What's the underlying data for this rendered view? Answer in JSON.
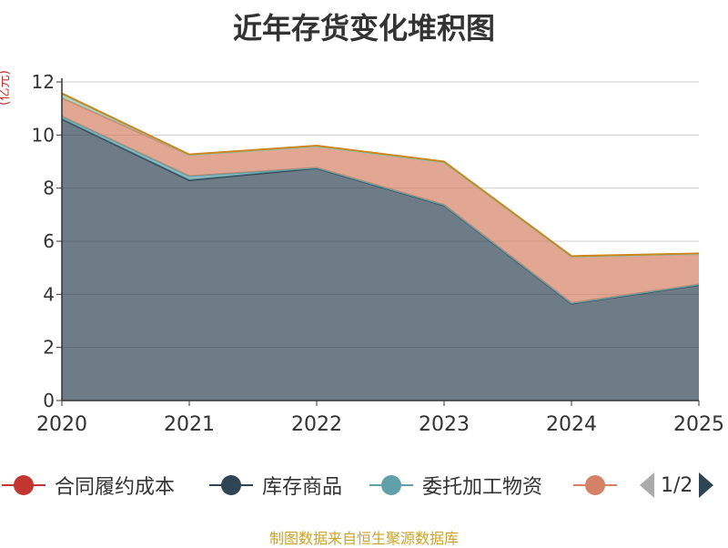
{
  "chart_data": {
    "type": "area",
    "title": "近年存货变化堆积图",
    "ylabel": "(亿元)",
    "categories": [
      "2020",
      "2021",
      "2022",
      "2023",
      "2024",
      "2025"
    ],
    "ylim": [
      0,
      12
    ],
    "yticks": [
      0,
      2,
      4,
      6,
      8,
      10,
      12
    ],
    "stacked": true,
    "grid": true,
    "series": [
      {
        "name": "合同履约成本",
        "color": "#c23531",
        "values": [
          0,
          0,
          0,
          0,
          0,
          0
        ]
      },
      {
        "name": "库存商品",
        "color": "#2f4554",
        "values": [
          10.6,
          8.3,
          8.75,
          7.35,
          3.65,
          4.35
        ]
      },
      {
        "name": "委托加工物资",
        "color": "#61a0a8",
        "values": [
          0.1,
          0.15,
          0.02,
          0.02,
          0.02,
          0.02
        ]
      },
      {
        "name": "",
        "color": "#d48265",
        "values": [
          0.7,
          0.8,
          0.8,
          1.6,
          1.75,
          1.15
        ]
      },
      {
        "name": "",
        "color": "#91c7ae",
        "values": [
          0.15,
          0.0,
          0.0,
          0.0,
          0.0,
          0.0
        ]
      },
      {
        "name": "",
        "color": "#ca8622",
        "values": [
          0.02,
          0.02,
          0.03,
          0.03,
          0.02,
          0.02
        ]
      }
    ],
    "legend": {
      "position": "bottom",
      "items": [
        "合同履约成本",
        "库存商品",
        "委托加工物资",
        ""
      ],
      "page": "1/2"
    }
  },
  "source": "制图数据来自恒生聚源数据库"
}
